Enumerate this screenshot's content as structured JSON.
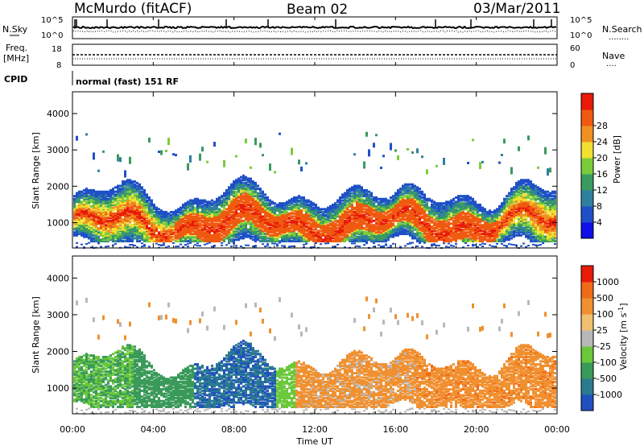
{
  "header": {
    "station": "McMurdo (fitACF)",
    "beam": "Beam 02",
    "date": "03/Mar/2011"
  },
  "noise_panel": {
    "left_label": "N.Sky",
    "right_label": "N.Search",
    "right_dots": "........",
    "left_ticks": [
      "10^5",
      "10^0"
    ],
    "right_ticks": [
      "10^5",
      "10^0"
    ]
  },
  "freq_panel": {
    "left_label_1": "Freq.",
    "left_label_2": "[MHz]",
    "left_ticks": [
      "18",
      "8"
    ],
    "right_label": "Nave",
    "right_dots": "....",
    "right_ticks": [
      "60",
      "0"
    ]
  },
  "cpid_panel": {
    "label": "CPID",
    "mode": "normal (fast) 151 RF"
  },
  "chart_data": [
    {
      "type": "heatmap",
      "name": "power",
      "ylabel": "Slant Range [km]",
      "yticks": [
        1000,
        2000,
        3000,
        4000
      ],
      "ylim": [
        300,
        4600
      ],
      "xlim": [
        0,
        24
      ],
      "colorbar": {
        "label": "Power [dB]",
        "ticks": [
          "4",
          "8",
          "12",
          "16",
          "20",
          "24",
          "28"
        ],
        "colors": [
          "#1010e8",
          "#1f4fc8",
          "#2f7fa0",
          "#3a9a60",
          "#7acc3a",
          "#f0e030",
          "#f09020",
          "#f05a10",
          "#e81a0a"
        ]
      }
    },
    {
      "type": "heatmap",
      "name": "velocity",
      "ylabel": "Slant Range [km]",
      "yticks": [
        1000,
        2000,
        3000,
        4000
      ],
      "ylim": [
        300,
        4600
      ],
      "xlim": [
        0,
        24
      ],
      "xlabel": "Time UT",
      "xticks": [
        "00:00",
        "04:00",
        "08:00",
        "12:00",
        "16:00",
        "20:00",
        "00:00"
      ],
      "colorbar": {
        "label": "Velocity [m s",
        "label_exp": "-1",
        "label_close": "]",
        "ticks": [
          "1000",
          "500",
          "100",
          "25",
          "-25",
          "-100",
          "-500",
          "-1000"
        ],
        "colors": [
          "#2050c0",
          "#2a7a90",
          "#3a9a5a",
          "#6ac83a",
          "#b8b8b8",
          "#f0c070",
          "#f09030",
          "#f06a18",
          "#e81a0a"
        ]
      }
    }
  ]
}
